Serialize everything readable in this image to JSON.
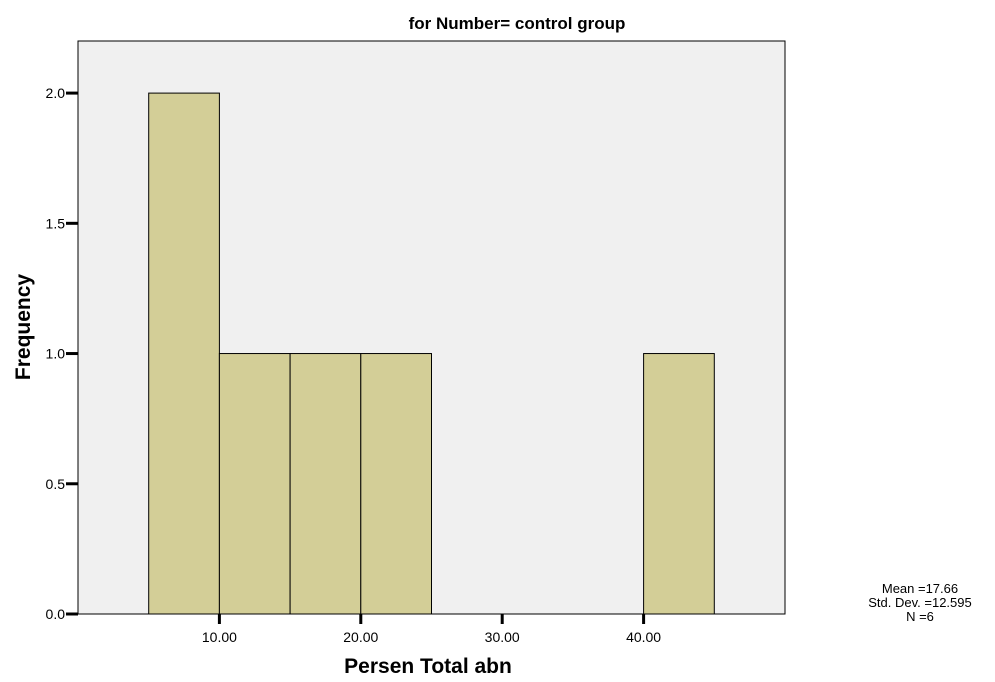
{
  "chart_data": {
    "type": "bar",
    "title": "for Number= control group",
    "xlabel": "Persen Total abn",
    "ylabel": "Frequency",
    "xlim": [
      0,
      50
    ],
    "ylim": [
      0,
      2.2
    ],
    "bins": [
      {
        "start": 5,
        "end": 10,
        "count": 2
      },
      {
        "start": 10,
        "end": 15,
        "count": 1
      },
      {
        "start": 15,
        "end": 20,
        "count": 1
      },
      {
        "start": 20,
        "end": 25,
        "count": 1
      },
      {
        "start": 25,
        "end": 30,
        "count": 0
      },
      {
        "start": 30,
        "end": 35,
        "count": 0
      },
      {
        "start": 35,
        "end": 40,
        "count": 0
      },
      {
        "start": 40,
        "end": 45,
        "count": 1
      }
    ],
    "xticks": [
      {
        "value": 10,
        "label": "10.00"
      },
      {
        "value": 20,
        "label": "20.00"
      },
      {
        "value": 30,
        "label": "30.00"
      },
      {
        "value": 40,
        "label": "40.00"
      }
    ],
    "yticks": [
      {
        "value": 0,
        "label": "0.0"
      },
      {
        "value": 0.5,
        "label": "0.5"
      },
      {
        "value": 1.0,
        "label": "1.0"
      },
      {
        "value": 1.5,
        "label": "1.5"
      },
      {
        "value": 2.0,
        "label": "2.0"
      }
    ],
    "stats": {
      "mean": "Mean =17.66",
      "std_dev": "Std. Dev. =12.595",
      "n": "N =6"
    },
    "colors": {
      "bar_fill": "#d3ce97",
      "plot_background": "#f0f0f0",
      "stroke": "#000000"
    }
  }
}
